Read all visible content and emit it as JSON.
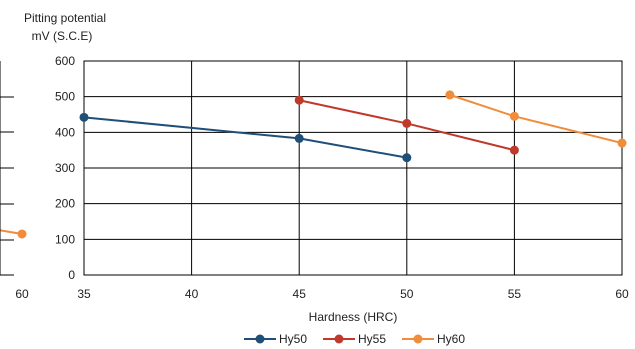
{
  "left_fragment": {
    "tick_labels": [
      "60"
    ],
    "series": [
      {
        "color": "#f08c3a",
        "x": [
          59,
          60
        ],
        "y": [
          125,
          115
        ]
      }
    ]
  },
  "chart_data": {
    "type": "line",
    "title": "",
    "ylabel_line1": "Pitting potential",
    "ylabel_line2": "mV (S.C.E)",
    "xlabel": "Hardness (HRC)",
    "xlim": [
      35,
      60
    ],
    "ylim": [
      0,
      600
    ],
    "xticks": [
      35,
      40,
      45,
      50,
      55,
      60
    ],
    "yticks": [
      0,
      100,
      200,
      300,
      400,
      500,
      600
    ],
    "grid": true,
    "legend_position": "bottom",
    "series": [
      {
        "name": "Hy50",
        "color": "#1f4e79",
        "x": [
          35,
          45,
          50
        ],
        "y": [
          442,
          383,
          329
        ]
      },
      {
        "name": "Hy55",
        "color": "#c0392b",
        "x": [
          45,
          50,
          55
        ],
        "y": [
          490,
          425,
          350
        ]
      },
      {
        "name": "Hy60",
        "color": "#f08c3a",
        "x": [
          52,
          55,
          60
        ],
        "y": [
          505,
          445,
          370
        ]
      }
    ]
  }
}
